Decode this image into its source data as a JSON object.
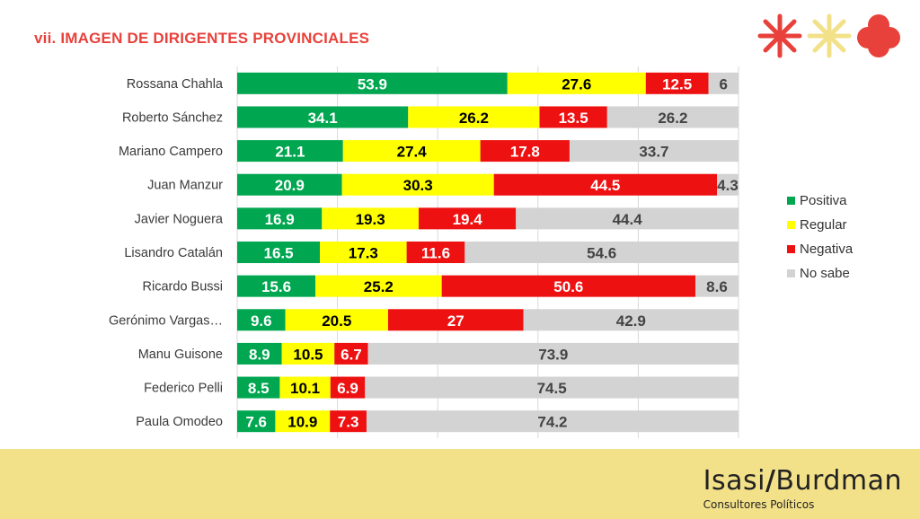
{
  "page": {
    "title": "vii. IMAGEN DE DIRIGENTES PROVINCIALES",
    "brand_left": "Isasi",
    "brand_slash": "/",
    "brand_right": "Burdman",
    "brand_subtitle": "Consultores Políticos"
  },
  "colors": {
    "positiva": "#00a650",
    "regular": "#ffff00",
    "negativa": "#ee1111",
    "nosabe": "#d3d3d3",
    "title": "#e8413b",
    "footer": "#f3e189"
  },
  "chart_data": {
    "type": "bar",
    "orientation": "horizontal",
    "stacked": true,
    "categories": [
      "Rossana Chahla",
      "Roberto Sánchez",
      "Mariano Campero",
      "Juan Manzur",
      "Javier Noguera",
      "Lisandro Catalán",
      "Ricardo Bussi",
      "Gerónimo Vargas…",
      "Manu Guisone",
      "Federico Pelli",
      "Paula Omodeo"
    ],
    "series": [
      {
        "name": "Positiva",
        "values": [
          53.9,
          34.1,
          21.1,
          20.9,
          16.9,
          16.5,
          15.6,
          9.6,
          8.9,
          8.5,
          7.6
        ]
      },
      {
        "name": "Regular",
        "values": [
          27.6,
          26.2,
          27.4,
          30.3,
          19.3,
          17.3,
          25.2,
          20.5,
          10.5,
          10.1,
          10.9
        ]
      },
      {
        "name": "Negativa",
        "values": [
          12.5,
          13.5,
          17.8,
          44.5,
          19.4,
          11.6,
          50.6,
          27,
          6.7,
          6.9,
          7.3
        ]
      },
      {
        "name": "No sabe",
        "values": [
          6,
          26.2,
          33.7,
          4.3,
          44.4,
          54.6,
          8.6,
          42.9,
          73.9,
          74.5,
          74.2
        ]
      }
    ],
    "xlim": [
      0,
      100
    ],
    "grid": true,
    "legend": "right"
  }
}
